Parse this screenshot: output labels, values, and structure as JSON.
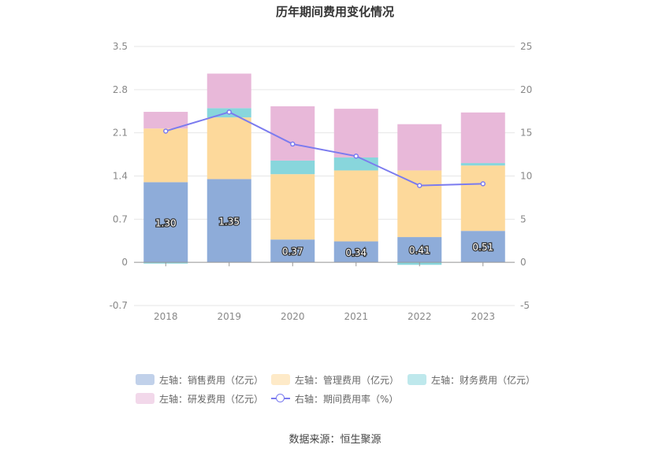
{
  "source_note": "数据来源：恒生聚源",
  "chart_data": {
    "type": "bar",
    "title": "历年期间费用变化情况",
    "stacked": true,
    "categories": [
      "2018",
      "2019",
      "2020",
      "2021",
      "2022",
      "2023"
    ],
    "y_left": {
      "ticks": [
        "3.5",
        "2.8",
        "2.1",
        "1.4",
        "0.7",
        "0",
        "-0.7"
      ],
      "range": [
        -0.7,
        3.5
      ]
    },
    "y_right": {
      "ticks": [
        "25",
        "20",
        "15",
        "10",
        "5",
        "0",
        "-5"
      ],
      "range": [
        -5,
        25
      ]
    },
    "series": [
      {
        "name": "左轴：销售费用（亿元）",
        "color": "#8eacd9",
        "values": [
          1.3,
          1.35,
          0.37,
          0.34,
          0.41,
          0.51
        ],
        "labels": [
          "1.30",
          "1.35",
          "0.37",
          "0.34",
          "0.41",
          "0.51"
        ]
      },
      {
        "name": "左轴：管理费用（亿元）",
        "color": "#fdd99b",
        "values": [
          0.87,
          1.0,
          1.06,
          1.15,
          1.08,
          1.06
        ]
      },
      {
        "name": "左轴：财务费用（亿元）",
        "color": "#88d6dc",
        "values": [
          -0.02,
          0.15,
          0.22,
          0.21,
          -0.04,
          0.04
        ]
      },
      {
        "name": "左轴：研发费用（亿元）",
        "color": "#e8b8d9",
        "values": [
          0.27,
          0.56,
          0.88,
          0.79,
          0.75,
          0.82
        ]
      }
    ],
    "line_series": {
      "name": "右轴：期间费用率（%）",
      "axis": "right",
      "color": "#7b7bef",
      "values": [
        15.2,
        17.4,
        13.7,
        12.3,
        8.9,
        9.1
      ]
    },
    "legend_position": "bottom",
    "grid": true
  }
}
